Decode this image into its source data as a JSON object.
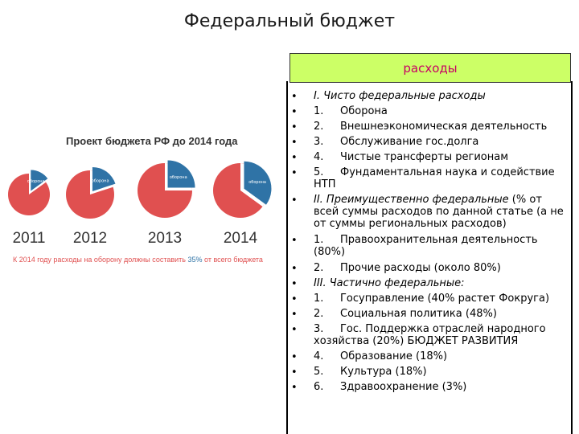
{
  "title": "Федеральный бюджет",
  "header": {
    "label": "расходы"
  },
  "list": [
    {
      "num": "",
      "text": "I. Чисто федеральные расходы",
      "italic": true
    },
    {
      "num": "1.",
      "text": "Оборона"
    },
    {
      "num": "2.",
      "text": "Внешнеэкономическая деятельность"
    },
    {
      "num": "3.",
      "text": "Обслуживание гос.долга"
    },
    {
      "num": "4.",
      "text": "Чистые трансферты регионам"
    },
    {
      "num": "5.",
      "text": "Фундаментальная наука и содействие НТП"
    },
    {
      "num": "",
      "text": "II. Преимущественно федеральные",
      "italic": true,
      "rest": " (% от всей суммы расходов по данной статье (а не от суммы региональных расходов)"
    },
    {
      "num": "1.",
      "text": "Правоохранительная деятельность (80%)"
    },
    {
      "num": "2.",
      "text": "Прочие расходы (около 80%)"
    },
    {
      "num": "",
      "text": "III. Частично федеральные:",
      "italic": true
    },
    {
      "num": "1.",
      "text": "Госуправление (40% растет Фокруга)"
    },
    {
      "num": "2.",
      "text": "Социальная политика (48%)"
    },
    {
      "num": "3.",
      "text": "Гос. Поддержка отраслей народного хозяйства (20%) БЮДЖЕТ РАЗВИТИЯ"
    },
    {
      "num": "4.",
      "text": "Образование (18%)"
    },
    {
      "num": "5.",
      "text": "Культура (18%)"
    },
    {
      "num": "6.",
      "text": "Здравоохранение (3%)"
    }
  ],
  "chart_data": {
    "type": "pie",
    "title": "Проект бюджета РФ до 2014 года",
    "categories": [
      "2011",
      "2012",
      "2013",
      "2014"
    ],
    "series": [
      {
        "name": "оборона",
        "values": [
          15,
          20,
          25,
          35
        ]
      }
    ],
    "colors": {
      "defense": "#2f73a6",
      "other": "#e05050"
    },
    "note": "К 2014 году расходы на оборону должны составить ",
    "note_pct": "35%",
    "note_tail": " от всего бюджета"
  }
}
